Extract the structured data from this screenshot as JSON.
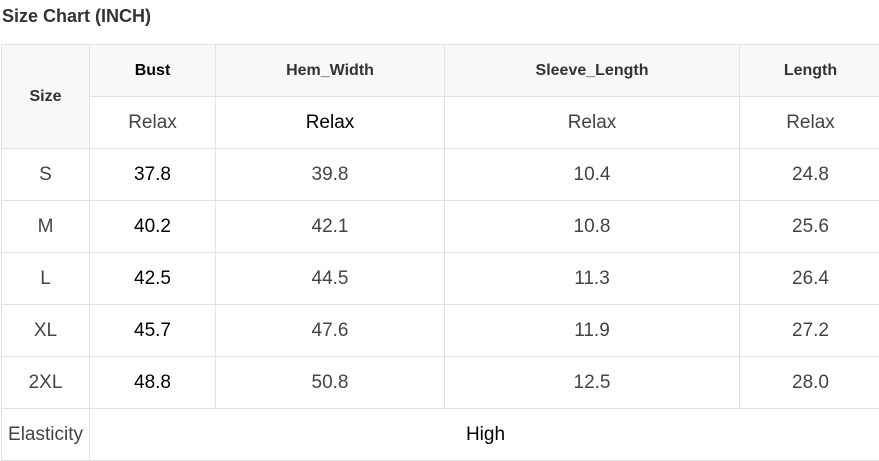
{
  "title": "Size Chart (INCH)",
  "headers": {
    "size": "Size",
    "cols": [
      "Bust",
      "Hem_Width",
      "Sleeve_Length",
      "Length"
    ],
    "fit": [
      "Relax",
      "Relax",
      "Relax",
      "Relax"
    ]
  },
  "rows": [
    [
      "S",
      "37.8",
      "39.8",
      "10.4",
      "24.8"
    ],
    [
      "M",
      "40.2",
      "42.1",
      "10.8",
      "25.6"
    ],
    [
      "L",
      "42.5",
      "44.5",
      "11.3",
      "26.4"
    ],
    [
      "XL",
      "45.7",
      "47.6",
      "11.9",
      "27.2"
    ],
    [
      "2XL",
      "48.8",
      "50.8",
      "12.5",
      "28.0"
    ]
  ],
  "elasticity": {
    "label": "Elasticity",
    "value": "High"
  }
}
